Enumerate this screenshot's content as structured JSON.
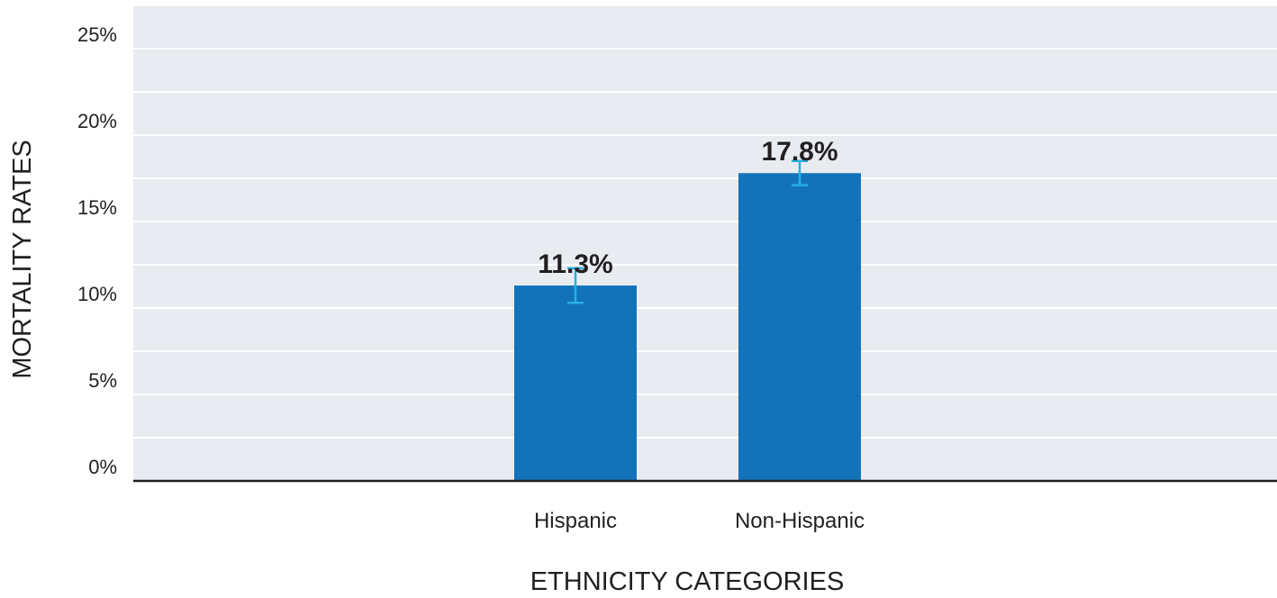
{
  "chart_data": {
    "type": "bar",
    "categories": [
      "Hispanic",
      "Non-Hispanic"
    ],
    "values": [
      11.3,
      17.8
    ],
    "data_labels": [
      "11.3%",
      "17.8%"
    ],
    "error_bars": [
      {
        "low": 10.3,
        "high": 12.3
      },
      {
        "low": 17.1,
        "high": 18.5
      }
    ],
    "xlabel": "ETHNICITY CATEGORIES",
    "ylabel": "MORTALITY RATES",
    "ylim": [
      0,
      27.5
    ],
    "yticks": [
      0,
      5,
      10,
      15,
      20,
      25
    ],
    "ytick_labels": [
      "0%",
      "5%",
      "10%",
      "15%",
      "20%",
      "25%"
    ],
    "grid": true,
    "legend": "none"
  },
  "colors": {
    "bar": "#1273bb",
    "error_bar": "#29aee3",
    "plot_background": "#e8ecf1",
    "gridline": "#ffffff",
    "baseline": "#231f20",
    "text": "#231f20"
  }
}
